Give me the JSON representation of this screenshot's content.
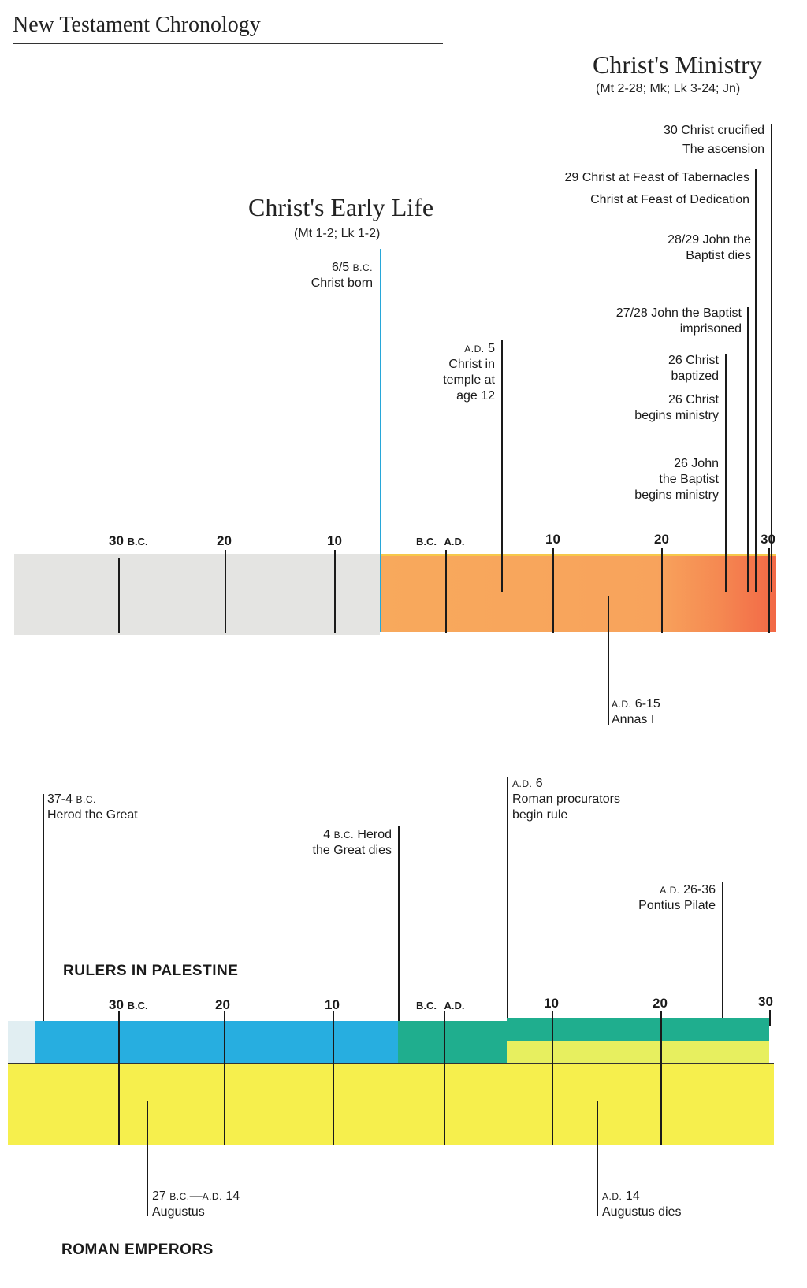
{
  "header": {
    "title": "New Testament Chronology"
  },
  "ministry": {
    "title": "Christ's Ministry",
    "refs": "(Mt 2-28; Mk; Lk 3-24; Jn)"
  },
  "early_life": {
    "title": "Christ's Early Life",
    "refs": "(Mt 1-2; Lk 1-2)"
  },
  "events_top": {
    "crucified": {
      "l1": "30 Christ crucified",
      "l2": "The ascension"
    },
    "tabernacles": {
      "l1": "29 Christ at Feast of Tabernacles",
      "l2": "Christ at Feast of Dedication"
    },
    "john_dies": {
      "l1": "28/29 John the",
      "l2": "Baptist dies"
    },
    "john_imprisoned": {
      "l1": "27/28 John the Baptist",
      "l2": "imprisoned"
    },
    "baptized": {
      "l1": "26 Christ",
      "l2": "baptized"
    },
    "begins_ministry": {
      "l1": "26 Christ",
      "l2": "begins ministry"
    },
    "john_ministry": {
      "l1": "26 John",
      "l2": "the Baptist",
      "l3": "begins ministry"
    },
    "born": {
      "year": "6/5",
      "era": "B.C.",
      "l2": "Christ born"
    },
    "temple": {
      "era": "A.D.",
      "year": "5",
      "l2": "Christ in",
      "l3": "temple at",
      "l4": "age 12"
    },
    "annas": {
      "era": "A.D.",
      "year": "6-15",
      "l2": "Annas I"
    }
  },
  "axis": {
    "bc30": "30",
    "bc_suffix": "B.C.",
    "bc20": "20",
    "bc10": "10",
    "bc_ad_bc": "B.C.",
    "bc_ad_ad": "A.D.",
    "ad10": "10",
    "ad20": "20",
    "ad30": "30"
  },
  "events_bottom": {
    "herod": {
      "year": "37-4",
      "era": "B.C.",
      "l2": "Herod the Great"
    },
    "herod_dies": {
      "year": "4",
      "era": "B.C.",
      "l1b": "Herod",
      "l2": "the Great dies"
    },
    "procurators": {
      "era": "A.D.",
      "year": "6",
      "l2": "Roman procurators",
      "l3": "begin rule"
    },
    "pilate": {
      "era": "A.D.",
      "year": "26-36",
      "l2": "Pontius Pilate"
    },
    "augustus": {
      "year1": "27",
      "era1": "B.C.",
      "dash": "—",
      "era2": "A.D.",
      "year2": "14",
      "l2": "Augustus"
    },
    "augustus_dies": {
      "era": "A.D.",
      "year": "14",
      "l2": "Augustus dies"
    }
  },
  "sections": {
    "rulers": "RULERS IN PALESTINE",
    "emperors": "ROMAN EMPERORS"
  },
  "colors": {
    "bc_band": "#e4e4e2",
    "ad_band_start": "#f8ab5e",
    "ad_band_end": "#f26a48",
    "blue": "#27aee0",
    "green": "#1fae8e",
    "yellow": "#f6ef4d",
    "pale": "#e1eef2"
  }
}
